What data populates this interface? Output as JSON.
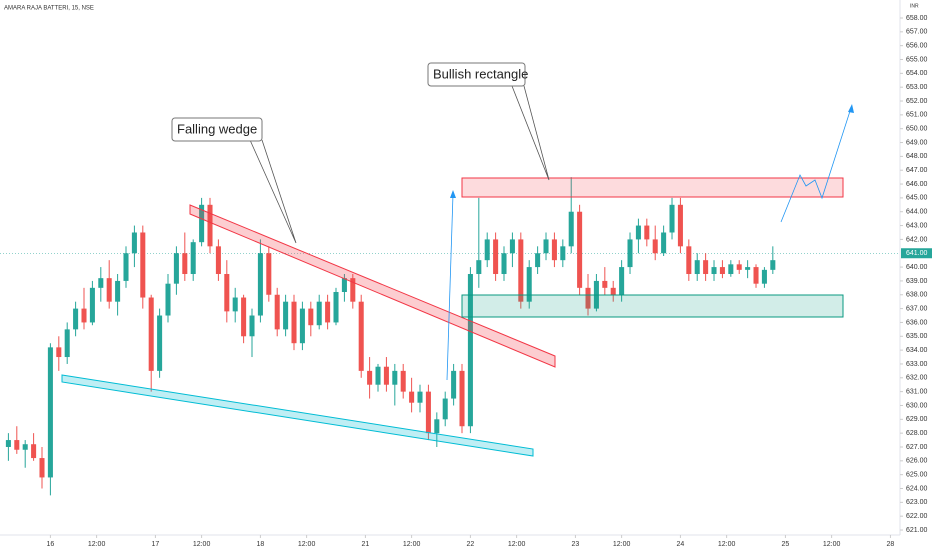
{
  "chart_data": {
    "type": "candlestick",
    "title": "AMARA RAJA BATTERI, 15, NSE",
    "currency": "INR",
    "annotations": [
      "Falling wedge",
      "Bullish rectangle"
    ],
    "last_price_label": "641.00",
    "up_color": "#26a69a",
    "down_color": "#ef5350",
    "xlim": [
      -6,
      101.14
    ],
    "xticks": [
      {
        "value": 0,
        "label": "16"
      },
      {
        "value": 5.5,
        "label": "12:00"
      },
      {
        "value": 12.5,
        "label": "17"
      },
      {
        "value": 18,
        "label": "12:00"
      },
      {
        "value": 25,
        "label": "18"
      },
      {
        "value": 30.5,
        "label": "12:00"
      },
      {
        "value": 37.5,
        "label": "21"
      },
      {
        "value": 43,
        "label": "12:00"
      },
      {
        "value": 50,
        "label": "22"
      },
      {
        "value": 55.5,
        "label": "12:00"
      },
      {
        "value": 62.5,
        "label": "23"
      },
      {
        "value": 68,
        "label": "12:00"
      },
      {
        "value": 75,
        "label": "24"
      },
      {
        "value": 80.5,
        "label": "12:00"
      },
      {
        "value": 87.5,
        "label": "25"
      },
      {
        "value": 93,
        "label": "12:00"
      },
      {
        "value": 100,
        "label": "28"
      }
    ],
    "ylim": [
      620.64,
      659.3
    ],
    "yticks": [
      {
        "value": 621,
        "label": "621.00"
      },
      {
        "value": 622,
        "label": "622.00"
      },
      {
        "value": 623,
        "label": "623.00"
      },
      {
        "value": 624,
        "label": "624.00"
      },
      {
        "value": 625,
        "label": "625.00"
      },
      {
        "value": 626,
        "label": "626.00"
      },
      {
        "value": 627,
        "label": "627.00"
      },
      {
        "value": 628,
        "label": "628.00"
      },
      {
        "value": 629,
        "label": "629.00"
      },
      {
        "value": 630,
        "label": "630.00"
      },
      {
        "value": 631,
        "label": "631.00"
      },
      {
        "value": 632,
        "label": "632.00"
      },
      {
        "value": 633,
        "label": "633.00"
      },
      {
        "value": 634,
        "label": "634.00"
      },
      {
        "value": 635,
        "label": "635.00"
      },
      {
        "value": 636,
        "label": "636.00"
      },
      {
        "value": 637,
        "label": "637.00"
      },
      {
        "value": 638,
        "label": "638.00"
      },
      {
        "value": 639,
        "label": "639.00"
      },
      {
        "value": 640,
        "label": "640.00"
      },
      {
        "value": 642,
        "label": "642.00"
      },
      {
        "value": 643,
        "label": "643.00"
      },
      {
        "value": 644,
        "label": "644.00"
      },
      {
        "value": 645,
        "label": "645.00"
      },
      {
        "value": 646,
        "label": "646.00"
      },
      {
        "value": 647,
        "label": "647.00"
      },
      {
        "value": 648,
        "label": "648.00"
      },
      {
        "value": 649,
        "label": "649.00"
      },
      {
        "value": 650,
        "label": "650.00"
      },
      {
        "value": 651,
        "label": "651.00"
      },
      {
        "value": 652,
        "label": "652.00"
      },
      {
        "value": 653,
        "label": "653.00"
      },
      {
        "value": 654,
        "label": "654.00"
      },
      {
        "value": 655,
        "label": "655.00"
      },
      {
        "value": 656,
        "label": "656.00"
      },
      {
        "value": 657,
        "label": "657.00"
      },
      {
        "value": 658,
        "label": "658.00"
      }
    ],
    "last_price": 641,
    "x": [
      -5,
      -4,
      -3,
      -2,
      -1,
      0,
      1,
      2,
      3,
      4,
      5,
      6,
      7,
      8,
      9,
      10,
      11,
      12,
      13,
      14,
      15,
      16,
      17,
      18,
      19,
      20,
      21,
      22,
      23,
      24,
      25,
      26,
      27,
      28,
      29,
      30,
      31,
      32,
      33,
      34,
      35,
      36,
      37,
      38,
      39,
      40,
      41,
      42,
      43,
      44,
      45,
      46,
      47,
      48,
      49,
      50,
      51,
      52,
      53,
      54,
      55,
      56,
      57,
      58,
      59,
      60,
      61,
      62,
      63,
      64,
      65,
      66,
      67,
      68,
      69,
      70,
      71,
      72,
      73,
      74,
      75,
      76,
      77,
      78,
      79,
      80,
      81,
      82,
      83,
      84,
      85,
      86
    ],
    "values": [
      [
        627,
        628,
        626,
        627.5
      ],
      [
        627.5,
        628.5,
        626.5,
        626.8
      ],
      [
        626.8,
        627.5,
        625.5,
        627.2
      ],
      [
        627.2,
        628,
        626,
        626.2
      ],
      [
        626.2,
        627,
        624,
        624.8
      ],
      [
        624.8,
        634.5,
        623.5,
        634.2
      ],
      [
        634.2,
        635,
        632.5,
        633.5
      ],
      [
        633.5,
        636,
        633,
        635.5
      ],
      [
        635.5,
        637.5,
        635,
        637
      ],
      [
        637,
        638.5,
        635.5,
        636
      ],
      [
        636,
        639,
        635.8,
        638.5
      ],
      [
        638.5,
        640,
        637.5,
        639.2
      ],
      [
        639.2,
        640.5,
        637,
        637.5
      ],
      [
        637.5,
        639.5,
        636.5,
        639
      ],
      [
        639,
        641.5,
        638.5,
        641
      ],
      [
        641,
        643,
        640,
        642.5
      ],
      [
        642.5,
        643,
        637,
        637.8
      ],
      [
        637.8,
        638,
        631,
        632.5
      ],
      [
        632.5,
        637,
        632,
        636.5
      ],
      [
        636.5,
        639.5,
        636,
        638.8
      ],
      [
        638.8,
        641.5,
        638,
        641
      ],
      [
        641,
        642.5,
        639,
        639.5
      ],
      [
        639.5,
        642,
        639,
        641.8
      ],
      [
        641.8,
        645,
        641.5,
        644.5
      ],
      [
        644.5,
        645,
        641,
        641.5
      ],
      [
        641.5,
        642,
        639,
        639.5
      ],
      [
        639.5,
        640.5,
        636,
        636.8
      ],
      [
        636.8,
        638.5,
        636,
        637.8
      ],
      [
        637.8,
        638,
        634.5,
        635
      ],
      [
        635,
        637,
        633.5,
        636.5
      ],
      [
        636.5,
        642,
        636,
        641
      ],
      [
        641,
        641.5,
        637.5,
        638
      ],
      [
        638,
        638.5,
        635,
        635.5
      ],
      [
        635.5,
        638,
        635,
        637.5
      ],
      [
        637.5,
        638,
        634,
        634.5
      ],
      [
        634.5,
        637.5,
        634,
        637
      ],
      [
        637,
        637.5,
        635,
        635.8
      ],
      [
        635.8,
        638,
        635.5,
        637.5
      ],
      [
        637.5,
        638,
        635.5,
        636
      ],
      [
        636,
        638.5,
        635.8,
        638.2
      ],
      [
        638.2,
        639.5,
        637.5,
        639.2
      ],
      [
        639.2,
        639.5,
        637,
        637.5
      ],
      [
        637.5,
        638,
        632,
        632.5
      ],
      [
        632.5,
        633.5,
        630.5,
        631.5
      ],
      [
        631.5,
        633,
        631,
        632.8
      ],
      [
        632.8,
        633.5,
        631,
        631.5
      ],
      [
        631.5,
        633,
        630,
        632.5
      ],
      [
        632.5,
        633,
        630.5,
        631
      ],
      [
        631,
        632,
        629.5,
        630.2
      ],
      [
        630.2,
        631.5,
        629.5,
        631
      ],
      [
        631,
        631.5,
        627.5,
        628
      ],
      [
        628,
        629.5,
        627,
        629
      ],
      [
        629,
        631,
        628.5,
        630.5
      ],
      [
        630.5,
        633,
        630,
        632.5
      ],
      [
        632.5,
        633,
        628,
        628.5
      ],
      [
        628.5,
        640,
        628,
        639.5
      ],
      [
        639.5,
        645,
        638.5,
        640.5
      ],
      [
        640.5,
        642.5,
        640,
        642
      ],
      [
        642,
        642.5,
        639,
        639.5
      ],
      [
        639.5,
        641.5,
        639,
        641
      ],
      [
        641,
        642.5,
        640,
        642
      ],
      [
        642,
        642.5,
        637,
        637.5
      ],
      [
        637.5,
        640.5,
        637,
        640
      ],
      [
        640,
        641.5,
        639.5,
        641
      ],
      [
        641,
        642.5,
        640.5,
        642
      ],
      [
        642,
        642.5,
        640,
        640.5
      ],
      [
        640.5,
        642,
        640,
        641.5
      ],
      [
        641.5,
        646.5,
        641,
        644
      ],
      [
        644,
        644.5,
        638,
        638.5
      ],
      [
        638.5,
        639.5,
        636.5,
        637
      ],
      [
        637,
        639.5,
        636.8,
        639
      ],
      [
        639,
        640,
        638,
        638.5
      ],
      [
        638.5,
        639,
        637.5,
        638
      ],
      [
        638,
        640.5,
        637.5,
        640
      ],
      [
        640,
        642.5,
        639.5,
        642
      ],
      [
        642,
        643.5,
        641,
        643
      ],
      [
        643,
        643.5,
        641.5,
        642
      ],
      [
        642,
        643,
        640.5,
        641
      ],
      [
        641,
        643,
        640.8,
        642.5
      ],
      [
        642.5,
        645,
        642,
        644.5
      ],
      [
        644.5,
        645,
        641,
        641.5
      ],
      [
        641.5,
        642,
        639,
        639.5
      ],
      [
        639.5,
        641,
        639,
        640.5
      ],
      [
        640.5,
        641,
        639,
        639.5
      ],
      [
        639.5,
        640.5,
        639,
        640
      ],
      [
        640,
        640.5,
        639.2,
        639.5
      ],
      [
        639.5,
        640.5,
        639.3,
        640.2
      ],
      [
        640.2,
        640.5,
        639.5,
        639.8
      ],
      [
        639.8,
        640.5,
        639.2,
        640
      ],
      [
        640,
        640.2,
        638.5,
        638.8
      ],
      [
        638.8,
        640,
        638.5,
        639.8
      ],
      [
        639.8,
        641.5,
        639.5,
        640.5
      ]
    ]
  }
}
